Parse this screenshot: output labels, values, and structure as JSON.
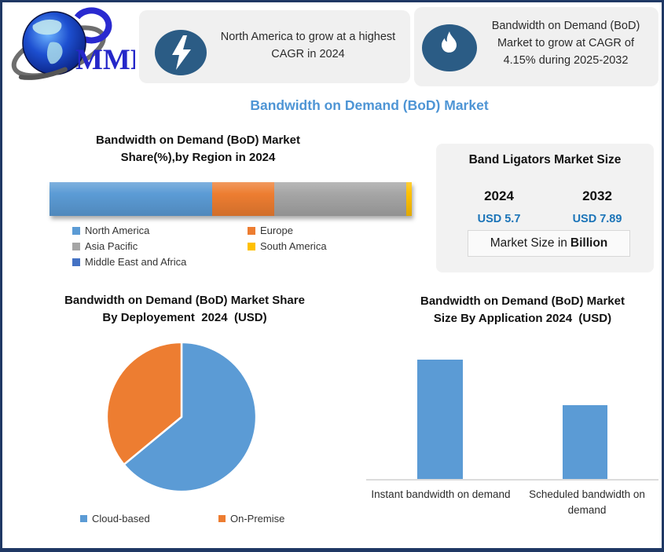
{
  "logo": {
    "text": "MMR"
  },
  "highlights": [
    {
      "icon": "lightning-icon",
      "text": "North America to grow at a highest CAGR in 2024"
    },
    {
      "icon": "flame-icon",
      "text": "Bandwidth on Demand (BoD) Market to grow at CAGR of 4.15% during 2025-2032"
    }
  ],
  "main_title": "Bandwidth on Demand (BoD) Market",
  "market_panel": {
    "title": "Band Ligators Market Size",
    "columns": [
      {
        "year": "2024",
        "value": "USD 5.7"
      },
      {
        "year": "2032",
        "value": "USD 7.89"
      }
    ],
    "footer_prefix": "Market Size in",
    "footer_bold": "Billion"
  },
  "colors": {
    "accent_title": "#4e95d5",
    "usd_value": "#1b74b8",
    "frame_border": "#1f3864",
    "icon_circle": "#2b5c85",
    "box_bg": "#f0f0f0",
    "panel_bg": "#f2f2f2"
  },
  "chart_data": [
    {
      "type": "bar",
      "subtype": "stacked-horizontal",
      "title": "Bandwidth on Demand (BoD) Market Share(%),by Region in 2024",
      "title_lines": [
        "Bandwidth on Demand (BoD) Market",
        "Share(%),by Region in 2024"
      ],
      "categories": [
        "North America",
        "Europe",
        "Asia Pacific",
        "South America",
        "Middle East and Africa"
      ],
      "values": [
        45,
        17,
        36.5,
        1.5,
        0
      ],
      "colors": [
        "#5b9bd5",
        "#ed7d31",
        "#a5a5a5",
        "#ffc000",
        "#4472c4"
      ],
      "unit": "%",
      "legend_position": "bottom"
    },
    {
      "type": "pie",
      "title": "Bandwidth on Demand (BoD) Market Share By Deployement 2024 (USD)",
      "title_lines": [
        "Bandwidth on Demand (BoD) Market Share",
        "By Deployement  2024  (USD)"
      ],
      "categories": [
        "Cloud-based",
        "On-Premise"
      ],
      "values": [
        64,
        36
      ],
      "colors": [
        "#5b9bd5",
        "#ed7d31"
      ],
      "legend_position": "bottom"
    },
    {
      "type": "bar",
      "subtype": "column",
      "title": "Bandwidth on Demand (BoD) Market Size By Application 2024 (USD)",
      "title_lines": [
        "Bandwidth on Demand (BoD) Market",
        "Size By Application 2024  (USD)"
      ],
      "categories": [
        "Instant bandwidth on demand",
        "Scheduled bandwidth on demand"
      ],
      "values": [
        100,
        62
      ],
      "color": "#5b9bd5"
    }
  ]
}
